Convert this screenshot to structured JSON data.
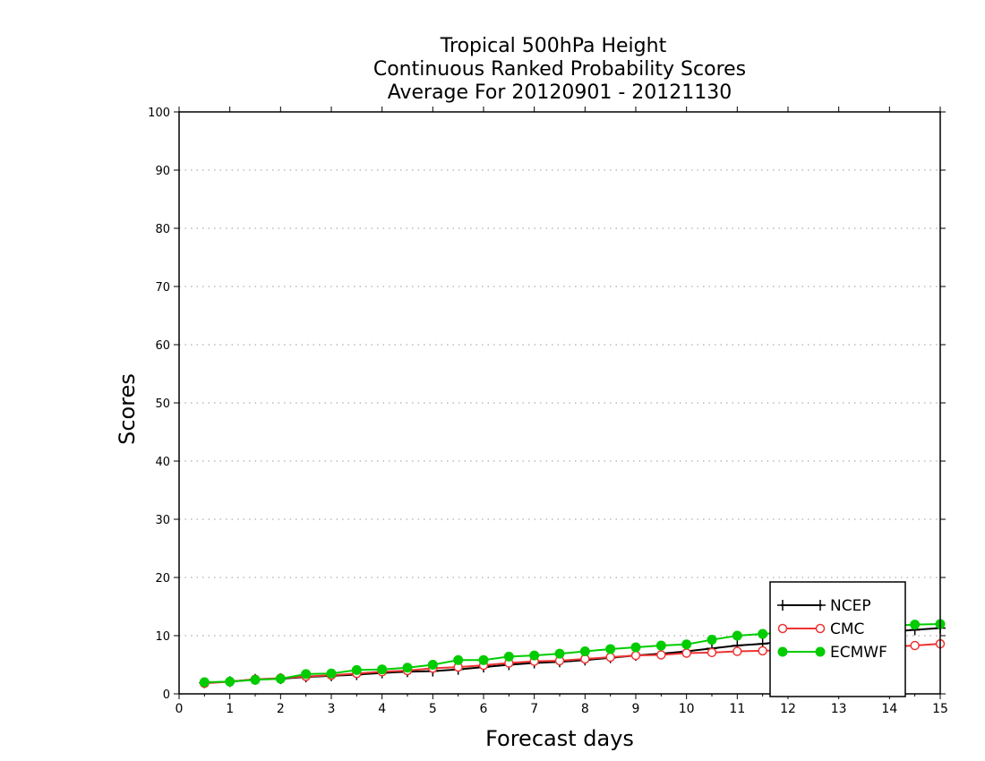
{
  "chart_data": {
    "type": "line",
    "title": [
      "Tropical 500hPa Height",
      "Continuous Ranked Probability Scores",
      "Average For 20120901 - 20121130"
    ],
    "xlabel": "Forecast days",
    "ylabel": "Scores",
    "xlim": [
      0,
      15
    ],
    "ylim": [
      0,
      100
    ],
    "xticks": [
      0,
      1,
      2,
      3,
      4,
      5,
      6,
      7,
      8,
      9,
      10,
      11,
      12,
      13,
      14,
      15
    ],
    "yticks": [
      0,
      10,
      20,
      30,
      40,
      50,
      60,
      70,
      80,
      90,
      100
    ],
    "grid": true,
    "legend_position": "bottom-right",
    "x": [
      0.5,
      1,
      1.5,
      2,
      2.5,
      3,
      3.5,
      4,
      4.5,
      5,
      5.5,
      6,
      6.5,
      7,
      7.5,
      8,
      8.5,
      9,
      9.5,
      10,
      10.5,
      11,
      11.5,
      12,
      12.5,
      13,
      13.5,
      14,
      14.5,
      15
    ],
    "series": [
      {
        "name": "NCEP",
        "color": "#000000",
        "marker": "plus",
        "values": [
          1.9,
          2.1,
          2.5,
          2.6,
          2.9,
          3.1,
          3.3,
          3.6,
          3.8,
          3.9,
          4.2,
          4.6,
          5.0,
          5.3,
          5.5,
          5.8,
          6.2,
          6.6,
          6.9,
          7.3,
          7.8,
          8.3,
          8.6,
          9.1,
          9.6,
          10.0,
          10.4,
          10.7,
          11.0,
          11.3
        ]
      },
      {
        "name": "CMC",
        "color": "#ee3333",
        "marker": "circle-open",
        "values": [
          1.8,
          2.1,
          2.5,
          2.7,
          3.0,
          3.2,
          3.5,
          3.8,
          4.0,
          4.4,
          4.6,
          4.9,
          5.3,
          5.6,
          5.7,
          6.0,
          6.3,
          6.6,
          6.7,
          7.0,
          7.1,
          7.3,
          7.4,
          7.5,
          7.7,
          7.9,
          8.0,
          8.1,
          8.3,
          8.6
        ]
      },
      {
        "name": "ECMWF",
        "color": "#00cc00",
        "marker": "circle-filled",
        "values": [
          2.0,
          2.1,
          2.4,
          2.6,
          3.4,
          3.5,
          4.1,
          4.2,
          4.5,
          5.0,
          5.8,
          5.8,
          6.4,
          6.6,
          6.9,
          7.3,
          7.7,
          8.0,
          8.3,
          8.5,
          9.3,
          10.0,
          10.3,
          10.6,
          10.9,
          11.2,
          11.5,
          11.7,
          11.9,
          12.0
        ]
      }
    ]
  }
}
